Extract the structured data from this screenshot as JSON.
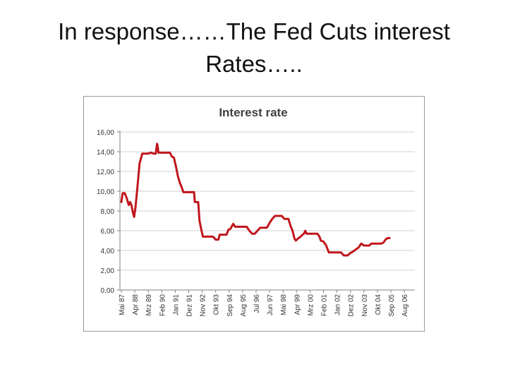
{
  "slide": {
    "title_line1": "In response……The Fed Cuts interest",
    "title_line2": "Rates….."
  },
  "colors": {
    "line": "#c0161c",
    "grid": "#d0d0d0",
    "axis": "#808080",
    "text": "#333333"
  },
  "chart_data": {
    "type": "line",
    "title": "Interest rate",
    "xlabel": "",
    "ylabel": "",
    "ylim": [
      0,
      16
    ],
    "y_ticks": [
      "0,00",
      "2,00",
      "4,00",
      "6,00",
      "8,00",
      "10,00",
      "12,00",
      "14,00",
      "16,00"
    ],
    "y_tick_values": [
      0,
      2,
      4,
      6,
      8,
      10,
      12,
      14,
      16
    ],
    "grid": true,
    "legend": "none",
    "x_tick_labels": [
      "Mai 87",
      "Apr 88",
      "Mrz 89",
      "Feb 90",
      "Jan 91",
      "Dez 91",
      "Nov 92",
      "Okt 93",
      "Sep 94",
      "Aug 95",
      "Jul 96",
      "Jun 97",
      "Mai 98",
      "Apr 99",
      "Mrz 00",
      "Feb 01",
      "Jan 02",
      "Dez 02",
      "Nov 03",
      "Okt 04",
      "Sep 05",
      "Aug 06"
    ],
    "x_range": [
      0,
      19.9
    ],
    "series": [
      {
        "x": [
          0,
          0.1,
          0.25,
          0.4,
          0.55,
          0.65,
          0.75,
          0.85,
          0.95,
          1.05,
          1.2,
          1.35,
          1.55,
          1.7,
          1.8,
          1.95,
          2.2,
          2.4,
          2.55,
          2.65,
          2.7,
          2.75,
          2.85,
          3.0,
          3.3,
          3.6,
          3.75,
          3.9,
          4.05,
          4.2,
          4.35,
          4.45,
          4.6,
          4.75,
          5.4,
          5.45,
          5.7,
          5.8,
          5.95,
          6.05,
          6.2,
          6.8,
          7.0,
          7.2,
          7.3,
          7.8,
          7.95,
          8.1,
          8.3,
          8.45,
          8.6,
          9.3,
          9.5,
          9.7,
          9.9,
          10.1,
          10.3,
          10.8,
          11.0,
          11.2,
          11.4,
          11.9,
          12.1,
          12.4,
          12.55,
          12.7,
          12.85,
          12.95,
          13.1,
          13.3,
          13.45,
          13.55,
          13.65,
          13.75,
          14.55,
          14.7,
          14.8,
          15.0,
          15.2,
          15.4,
          16.3,
          16.5,
          16.8,
          16.95,
          17.2,
          17.4,
          17.6,
          17.8,
          18.0,
          18.4,
          18.55,
          19.3,
          19.45,
          19.6,
          19.75,
          19.9
        ],
        "y": [
          8.9,
          9.8,
          9.8,
          9.3,
          8.6,
          8.9,
          8.6,
          7.9,
          7.4,
          8.4,
          10.5,
          12.8,
          13.8,
          13.8,
          13.8,
          13.8,
          13.9,
          13.8,
          13.8,
          14.8,
          14.5,
          13.9,
          13.9,
          13.9,
          13.9,
          13.9,
          13.5,
          13.4,
          12.5,
          11.5,
          10.8,
          10.5,
          9.9,
          9.9,
          9.9,
          8.9,
          8.9,
          7.0,
          6.0,
          5.4,
          5.4,
          5.4,
          5.1,
          5.1,
          5.6,
          5.6,
          6.1,
          6.2,
          6.7,
          6.4,
          6.4,
          6.4,
          6.0,
          5.7,
          5.7,
          6.0,
          6.3,
          6.3,
          6.8,
          7.2,
          7.5,
          7.5,
          7.2,
          7.2,
          6.5,
          6.0,
          5.2,
          5.0,
          5.2,
          5.4,
          5.6,
          5.7,
          6.0,
          5.7,
          5.7,
          5.4,
          5.0,
          4.9,
          4.5,
          3.8,
          3.8,
          3.5,
          3.5,
          3.7,
          3.9,
          4.1,
          4.3,
          4.7,
          4.5,
          4.5,
          4.7,
          4.7,
          4.8,
          5.1,
          5.25,
          5.25
        ]
      }
    ]
  }
}
